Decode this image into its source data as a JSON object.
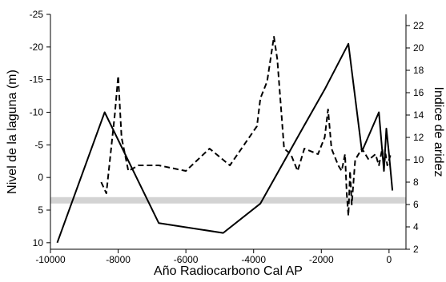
{
  "chart_data": {
    "type": "line",
    "title": "",
    "xlabel": "Año Radiocarbono Cal AP",
    "ylabel_left": "Nivel de la laguna (m)",
    "ylabel_right": "Indice de aridez",
    "xlim": [
      -10000,
      500
    ],
    "x_ticks": [
      -10000,
      -8000,
      -6000,
      -4000,
      -2000,
      0
    ],
    "ylim_left": [
      -25,
      11
    ],
    "y_left_inverted": true,
    "y_left_ticks": [
      -25,
      -20,
      -15,
      -10,
      -5,
      0,
      5,
      10
    ],
    "ylim_right": [
      2,
      23
    ],
    "y_right_ticks": [
      2,
      4,
      6,
      8,
      10,
      12,
      14,
      16,
      18,
      20,
      22
    ],
    "reference_band": {
      "axis": "left",
      "value": 3.5,
      "color": "#d3d3d3"
    },
    "grid": false,
    "legend": "none",
    "series": [
      {
        "axis": "left",
        "style": "solid",
        "color": "#000000",
        "x": [
          -9800,
          -8400,
          -6800,
          -4900,
          -3800,
          -2500,
          -1900,
          -1200,
          -800,
          -300,
          -150,
          -80,
          0,
          100
        ],
        "y": [
          10,
          -10,
          7,
          8.5,
          4,
          -8,
          -13.5,
          -20.5,
          -4,
          -10,
          -1,
          -7.5,
          -3.5,
          2
        ]
      },
      {
        "axis": "right",
        "style": "dashed",
        "color": "#000000",
        "x": [
          -8500,
          -8350,
          -8100,
          -8000,
          -7900,
          -7700,
          -7400,
          -6800,
          -6000,
          -5300,
          -4700,
          -3900,
          -3800,
          -3600,
          -3400,
          -3300,
          -3100,
          -2900,
          -2700,
          -2500,
          -2100,
          -1900,
          -1800,
          -1700,
          -1500,
          -1400,
          -1300,
          -1250,
          -1200,
          -1150,
          -1100,
          -1000,
          -800,
          -600,
          -400,
          -300,
          -200,
          -150,
          -100,
          -50,
          0,
          50
        ],
        "y": [
          8,
          7,
          14,
          17.5,
          12,
          9,
          9.5,
          9.5,
          9,
          11,
          9.5,
          13,
          15.5,
          17,
          21,
          19,
          11,
          10.5,
          9,
          11,
          10.5,
          12,
          14.5,
          11,
          9.5,
          9,
          10.5,
          7,
          5,
          9,
          6,
          10,
          11,
          10,
          10.5,
          9.5,
          11,
          9.5,
          10.5,
          9.5,
          10,
          10.5
        ]
      }
    ]
  }
}
